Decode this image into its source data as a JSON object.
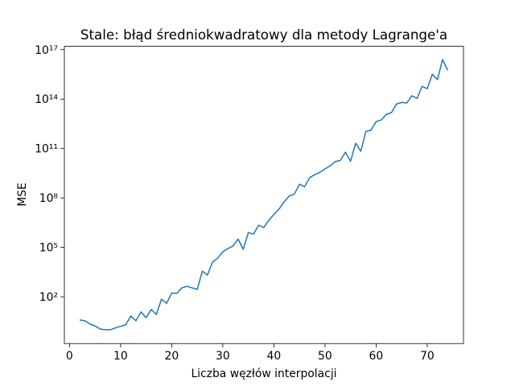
{
  "chart_data": {
    "type": "line",
    "title": "Stale: błąd średniokwadratowy dla metody Lagrange'a",
    "x_label": "Liczba węzłów interpolacji",
    "y_label": "MSE",
    "y_scale": "log",
    "color": "#1f77b4",
    "x": [
      2,
      3,
      4,
      5,
      6,
      7,
      8,
      9,
      10,
      11,
      12,
      13,
      14,
      15,
      16,
      17,
      18,
      19,
      20,
      21,
      22,
      23,
      24,
      25,
      26,
      27,
      28,
      29,
      30,
      31,
      32,
      33,
      34,
      35,
      36,
      37,
      38,
      39,
      40,
      41,
      42,
      43,
      44,
      45,
      46,
      47,
      48,
      49,
      50,
      51,
      52,
      53,
      54,
      55,
      56,
      57,
      58,
      59,
      60,
      61,
      62,
      63,
      64,
      65,
      66,
      67,
      68,
      69,
      70,
      71,
      72,
      73,
      74
    ],
    "values": [
      3.9,
      3.5,
      2.2,
      1.7,
      1.1,
      1.0,
      1.0,
      1.3,
      1.6,
      2.0,
      6.8,
      3.5,
      12,
      5.4,
      17,
      8.5,
      71,
      40,
      170,
      160,
      350,
      430,
      350,
      280,
      3600,
      2100,
      13000.0,
      22000.0,
      54000.0,
      85000.0,
      120000.0,
      320000.0,
      76000.0,
      790000.0,
      630000.0,
      2200000.0,
      1600000.0,
      4300000.0,
      10000000.0,
      21000000.0,
      58000000.0,
      130000000.0,
      170000000.0,
      680000000.0,
      480000000.0,
      1700000000.0,
      2600000000.0,
      3600000000.0,
      5800000000.0,
      8900000000.0,
      16000000000.0,
      19000000000.0,
      60000000000.0,
      17000000000.0,
      210000000000.0,
      68000000000.0,
      1100000000000.0,
      1300000000000.0,
      4300000000000.0,
      5400000000000.0,
      12000000000000.0,
      15000000000000.0,
      50000000000000.0,
      63000000000000.0,
      58000000000000.0,
      160000000000000.0,
      110000000000000.0,
      600000000000000.0,
      430000000000000.0,
      3200000000000000.0,
      1500000000000000.0,
      2.5e+16,
      5800000000000000.0
    ],
    "xlim": [
      -1.0,
      77.1
    ],
    "xticks": [
      0,
      10,
      20,
      30,
      40,
      50,
      60,
      70
    ],
    "ylim": [
      0.145,
      1.6e+17
    ],
    "yticks": [
      {
        "value": 100,
        "label": "10²"
      },
      {
        "value": 100000,
        "label": "10⁵"
      },
      {
        "value": 100000000,
        "label": "10⁸"
      },
      {
        "value": 100000000000,
        "label": "10¹¹"
      },
      {
        "value": 100000000000000,
        "label": "10¹⁴"
      },
      {
        "value": 100000000000000000,
        "label": "10¹⁷"
      }
    ]
  }
}
